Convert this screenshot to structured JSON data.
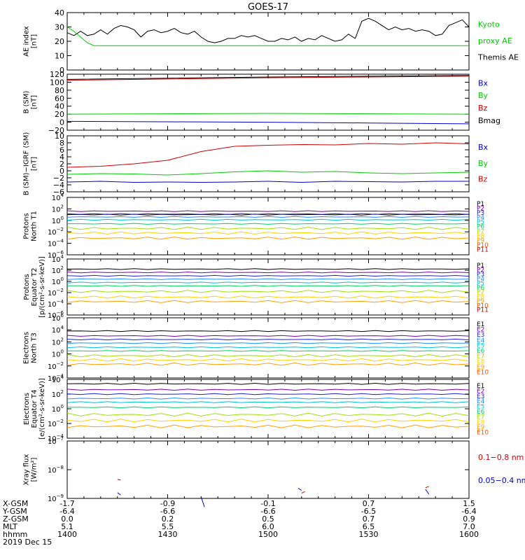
{
  "title": "GOES-17",
  "colors": {
    "black": "#000000",
    "blue": "#0000cc",
    "green": "#00cc00",
    "red": "#cc0000",
    "ch": [
      "#000000",
      "#7a00a8",
      "#2020d0",
      "#2090ff",
      "#00c0e0",
      "#00d060",
      "#a0e000",
      "#ffd000",
      "#ffa000",
      "#ff5000",
      "#cc0000"
    ]
  },
  "x_axis": {
    "tick_values": [
      1400,
      1430,
      1500,
      1530,
      1600
    ],
    "rows": [
      {
        "label": "X-GSM",
        "values": [
          "-1.7",
          "-0.9",
          "-0.1",
          "0.7",
          "1.5"
        ]
      },
      {
        "label": "Y-GSM",
        "values": [
          "-6.4",
          "-6.6",
          "-6.6",
          "-6.5",
          "-6.4"
        ]
      },
      {
        "label": "Z-GSM",
        "values": [
          "0.0",
          "0.2",
          "0.5",
          "0.7",
          "0.9"
        ]
      },
      {
        "label": "MLT",
        "values": [
          "5.1",
          "5.5",
          "6.0",
          "6.5",
          "7.0"
        ]
      },
      {
        "label": "hhmm",
        "values": [
          "1400",
          "1430",
          "1500",
          "1530",
          "1600"
        ]
      }
    ],
    "date": "2019 Dec 15"
  },
  "chart_data": [
    {
      "type": "line",
      "ylabel": [
        "AE index",
        "[nT]"
      ],
      "ylim": [
        0,
        40
      ],
      "yticks": [
        "0",
        "10",
        "20",
        "30",
        "40"
      ],
      "legend": [
        {
          "text": "Kyoto",
          "color": "green"
        },
        {
          "text": "proxy AE",
          "color": "green"
        },
        {
          "text": "Themis AE",
          "color": "black"
        }
      ],
      "series": [
        {
          "color": "black",
          "x": [
            1400,
            1402,
            1404,
            1406,
            1408,
            1410,
            1412,
            1414,
            1416,
            1418,
            1420,
            1422,
            1424,
            1426,
            1428,
            1430,
            1432,
            1434,
            1436,
            1438,
            1440,
            1442,
            1444,
            1446,
            1448,
            1450,
            1452,
            1454,
            1456,
            1458,
            1500,
            1502,
            1504,
            1506,
            1508,
            1510,
            1512,
            1514,
            1516,
            1518,
            1520,
            1522,
            1524,
            1526,
            1528,
            1530,
            1532,
            1534,
            1536,
            1538,
            1540,
            1542,
            1544,
            1546,
            1548,
            1550,
            1552,
            1554,
            1556,
            1558,
            1600
          ],
          "y": [
            26,
            24,
            27,
            24,
            25,
            28,
            25,
            29,
            31,
            30,
            28,
            23,
            27,
            28,
            26,
            27,
            29,
            26,
            25,
            27,
            23,
            20,
            19,
            20,
            22,
            22,
            24,
            23,
            24,
            22,
            20,
            20,
            22,
            21,
            23,
            20,
            22,
            21,
            24,
            22,
            20,
            21,
            25,
            22,
            34,
            36,
            34,
            31,
            28,
            30,
            28,
            29,
            27,
            28,
            27,
            24,
            25,
            31,
            33,
            35,
            30
          ]
        },
        {
          "color": "green",
          "x": [
            1400,
            1402,
            1404,
            1406,
            1408,
            1600
          ],
          "y": [
            30,
            27,
            23,
            19,
            17,
            17
          ]
        }
      ]
    },
    {
      "type": "line",
      "ylabel": [
        "B (SM)",
        "[nT]"
      ],
      "ylim": [
        -20,
        120
      ],
      "yticks": [
        "120",
        "100",
        "80",
        "60",
        "40",
        "20",
        "0",
        "−20"
      ],
      "legend": [
        {
          "text": "Bx",
          "color": "blue"
        },
        {
          "text": "By",
          "color": "green"
        },
        {
          "text": "Bz",
          "color": "red"
        },
        {
          "text": "Bmag",
          "color": "black"
        }
      ],
      "series": [
        {
          "color": "blue",
          "x": [
            1400,
            1430,
            1500,
            1530,
            1600
          ],
          "y": [
            2,
            1,
            0,
            -2,
            -4
          ]
        },
        {
          "color": "green",
          "x": [
            1400,
            1430,
            1500,
            1530,
            1600
          ],
          "y": [
            20,
            21,
            22,
            21,
            20
          ]
        },
        {
          "color": "red",
          "x": [
            1400,
            1430,
            1500,
            1530,
            1600
          ],
          "y": [
            105,
            108,
            111,
            113,
            115
          ]
        },
        {
          "color": "black",
          "x": [
            1400,
            1430,
            1500,
            1530,
            1600
          ],
          "y": [
            107,
            110,
            113,
            115,
            117
          ]
        }
      ]
    },
    {
      "type": "line",
      "ylabel": [
        "B (SM)−IGRF (SM)",
        "[nT]"
      ],
      "ylim": [
        -6,
        10
      ],
      "yticks": [
        "10",
        "8",
        "6",
        "4",
        "2",
        "0",
        "−2",
        "−4",
        "−6"
      ],
      "legend": [
        {
          "text": "Bx",
          "color": "blue"
        },
        {
          "text": "By",
          "color": "green"
        },
        {
          "text": "Bz",
          "color": "red"
        }
      ],
      "series": [
        {
          "color": "red",
          "x": [
            1400,
            1410,
            1420,
            1430,
            1440,
            1450,
            1500,
            1510,
            1520,
            1530,
            1540,
            1550,
            1600
          ],
          "y": [
            1,
            1.3,
            2,
            3,
            5.5,
            7,
            7.3,
            7.5,
            7.4,
            7.8,
            7.6,
            8.0,
            7.7
          ]
        },
        {
          "color": "green",
          "x": [
            1400,
            1410,
            1420,
            1430,
            1440,
            1450,
            1500,
            1510,
            1520,
            1530,
            1540,
            1550,
            1600
          ],
          "y": [
            -1.0,
            -0.8,
            -0.9,
            -1.2,
            -0.8,
            -0.3,
            0,
            -0.4,
            -0.2,
            -0.6,
            -0.8,
            -0.6,
            -0.4
          ]
        },
        {
          "color": "blue",
          "x": [
            1400,
            1410,
            1420,
            1430,
            1440,
            1450,
            1500,
            1510,
            1520,
            1530,
            1540,
            1550,
            1600
          ],
          "y": [
            -3.2,
            -3.0,
            -3.3,
            -3.2,
            -3.3,
            -3.2,
            -3.0,
            -3.3,
            -3.0,
            -3.1,
            -3.2,
            -3.0,
            -3.0
          ]
        }
      ]
    },
    {
      "type": "line",
      "ylabel": [
        "Protons",
        "North T1"
      ],
      "log": true,
      "ylim_exp": [
        -6,
        4
      ],
      "yticks_exp": [
        4,
        2,
        0,
        -2,
        -4,
        -6
      ],
      "legend": [
        "P1",
        "P2",
        "P3",
        "P4",
        "P5",
        "P6",
        "P7",
        "P8",
        "P9",
        "P10",
        "P11"
      ],
      "series_levels": [
        1.0,
        1.6,
        1.1,
        0.6,
        0.1,
        -0.6,
        -1.4,
        -2.2,
        -3.1
      ]
    },
    {
      "type": "line",
      "ylabel": [
        "Protons",
        "Equator T2",
        "[p/(cm²-s-sr-keV)]"
      ],
      "log": true,
      "ylim_exp": [
        -6,
        4
      ],
      "yticks_exp": [
        4,
        2,
        0,
        -2,
        -4,
        -6
      ],
      "legend": [
        "P1",
        "P2",
        "P3",
        "P4",
        "P5",
        "P6",
        "P7",
        "P8",
        "P9",
        "P10",
        "P11"
      ],
      "series_levels": [
        2.2,
        1.6,
        1.0,
        0.4,
        -0.2,
        -0.8,
        -1.8,
        -2.8,
        -3.6
      ]
    },
    {
      "type": "line",
      "ylabel": [
        "Electrons",
        "North T3"
      ],
      "log": true,
      "ylim_exp": [
        -4,
        6
      ],
      "yticks_exp": [
        6,
        4,
        2,
        0,
        -2,
        -4
      ],
      "legend": [
        "E1",
        "E2",
        "E3",
        "E4",
        "E5",
        "E6",
        "E7",
        "E8",
        "E9",
        "E10"
      ],
      "series_levels": [
        3.8,
        3.0,
        2.4,
        1.8,
        1.1,
        0.5,
        -0.3,
        -1.0,
        -1.7
      ]
    },
    {
      "type": "line",
      "ylabel": [
        "Electrons",
        "Equator T4",
        "[e/(cm²-s-sr-keV)]"
      ],
      "log": true,
      "ylim_exp": [
        -4,
        4
      ],
      "yticks_exp": [
        4,
        2,
        0,
        -2,
        -4
      ],
      "legend": [
        "E1",
        "E2",
        "E3",
        "E4",
        "E5",
        "E6",
        "E7",
        "E8",
        "E9",
        "E10"
      ],
      "series_levels": [
        3.4,
        2.6,
        2.0,
        1.4,
        0.9,
        0.2,
        -0.8,
        -1.6,
        -2.4
      ]
    },
    {
      "type": "line",
      "ylabel": [
        "Xray flux",
        "[W/m²]"
      ],
      "log": true,
      "ylim_exp": [
        -9,
        -7
      ],
      "yticks_exp": [
        -7,
        -8,
        -9
      ],
      "legend": [
        {
          "text": "0.1−0.8 nm",
          "color": "red"
        },
        {
          "text": "0.05−0.4 nm",
          "color": "blue"
        }
      ],
      "series": [
        {
          "color": "red",
          "segments": [
            [
              [
                1415,
                -8.34
              ],
              [
                1416,
                -8.36
              ]
            ],
            [
              [
                1510,
                -8.82
              ],
              [
                1511,
                -8.76
              ]
            ],
            [
              [
                1547,
                -8.63
              ],
              [
                1548,
                -8.58
              ]
            ]
          ]
        },
        {
          "color": "blue",
          "segments": [
            [
              [
                1415,
                -8.8
              ],
              [
                1416,
                -8.88
              ]
            ],
            [
              [
                1440,
                -8.95
              ],
              [
                1441,
                -9.3
              ]
            ],
            [
              [
                1509,
                -8.65
              ],
              [
                1510,
                -8.72
              ]
            ],
            [
              [
                1547,
                -8.68
              ],
              [
                1548,
                -8.85
              ]
            ]
          ]
        }
      ]
    }
  ]
}
